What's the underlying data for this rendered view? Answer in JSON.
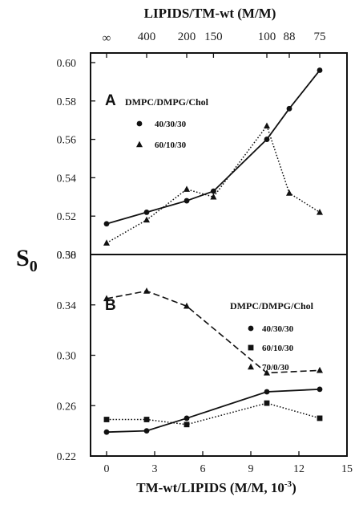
{
  "figure": {
    "top_axis_title": "LIPIDS/TM-wt (M/M)",
    "top_ticks": [
      {
        "label": "∞",
        "x": 0
      },
      {
        "label": "400",
        "x": 2.5
      },
      {
        "label": "200",
        "x": 5
      },
      {
        "label": "150",
        "x": 6.67
      },
      {
        "label": "100",
        "x": 10
      },
      {
        "label": "88",
        "x": 11.4
      },
      {
        "label": "75",
        "x": 13.3
      }
    ],
    "y_axis_main": "S",
    "y_axis_sub": "0",
    "x_axis_title": "TM-wt/LIPIDS  (M/M, 10",
    "x_axis_title_exp": "-3",
    "x_axis_title_end": ")"
  },
  "chart_data": [
    {
      "type": "line",
      "panel": "A",
      "legend_title": "DMPC/DMPG/Chol",
      "xlim": [
        -1,
        15
      ],
      "ylim": [
        0.5,
        0.605
      ],
      "yticks": [
        0.5,
        0.52,
        0.54,
        0.56,
        0.58,
        0.6
      ],
      "ytick_labels": [
        "0.50",
        "0.52",
        "0.54",
        "0.56",
        "0.58",
        "0.60"
      ],
      "series": [
        {
          "name": "40/30/30",
          "marker": "circle",
          "line": "solid",
          "x": [
            0,
            2.5,
            5,
            6.67,
            10,
            11.4,
            13.3
          ],
          "y": [
            0.516,
            0.522,
            0.528,
            0.533,
            0.56,
            0.576,
            0.596
          ]
        },
        {
          "name": "60/10/30",
          "marker": "triangle",
          "line": "dotted",
          "x": [
            0,
            2.5,
            5,
            6.67,
            10,
            11.4,
            13.3
          ],
          "y": [
            0.506,
            0.518,
            0.534,
            0.53,
            0.567,
            0.532,
            0.522
          ]
        }
      ]
    },
    {
      "type": "line",
      "panel": "B",
      "legend_title": "DMPC/DMPG/Chol",
      "xlim": [
        -1,
        15
      ],
      "ylim": [
        0.22,
        0.38
      ],
      "yticks": [
        0.22,
        0.26,
        0.3,
        0.34,
        0.38
      ],
      "ytick_labels": [
        "0.22",
        "0.26",
        "0.30",
        "0.34",
        "0.38"
      ],
      "xticks": [
        0,
        3,
        6,
        9,
        12,
        15
      ],
      "xtick_labels": [
        "0",
        "3",
        "6",
        "9",
        "12",
        "15"
      ],
      "series": [
        {
          "name": "40/30/30",
          "marker": "circle",
          "line": "solid",
          "x": [
            0,
            2.5,
            5,
            10,
            13.3
          ],
          "y": [
            0.239,
            0.24,
            0.25,
            0.271,
            0.273
          ]
        },
        {
          "name": "60/10/30",
          "marker": "square",
          "line": "dotted",
          "x": [
            0,
            2.5,
            5,
            10,
            13.3
          ],
          "y": [
            0.249,
            0.249,
            0.245,
            0.262,
            0.25
          ]
        },
        {
          "name": "70/0/30",
          "marker": "triangle",
          "line": "dashed",
          "x": [
            0,
            2.5,
            5,
            10,
            13.3
          ],
          "y": [
            0.345,
            0.351,
            0.339,
            0.286,
            0.288
          ]
        }
      ]
    }
  ]
}
